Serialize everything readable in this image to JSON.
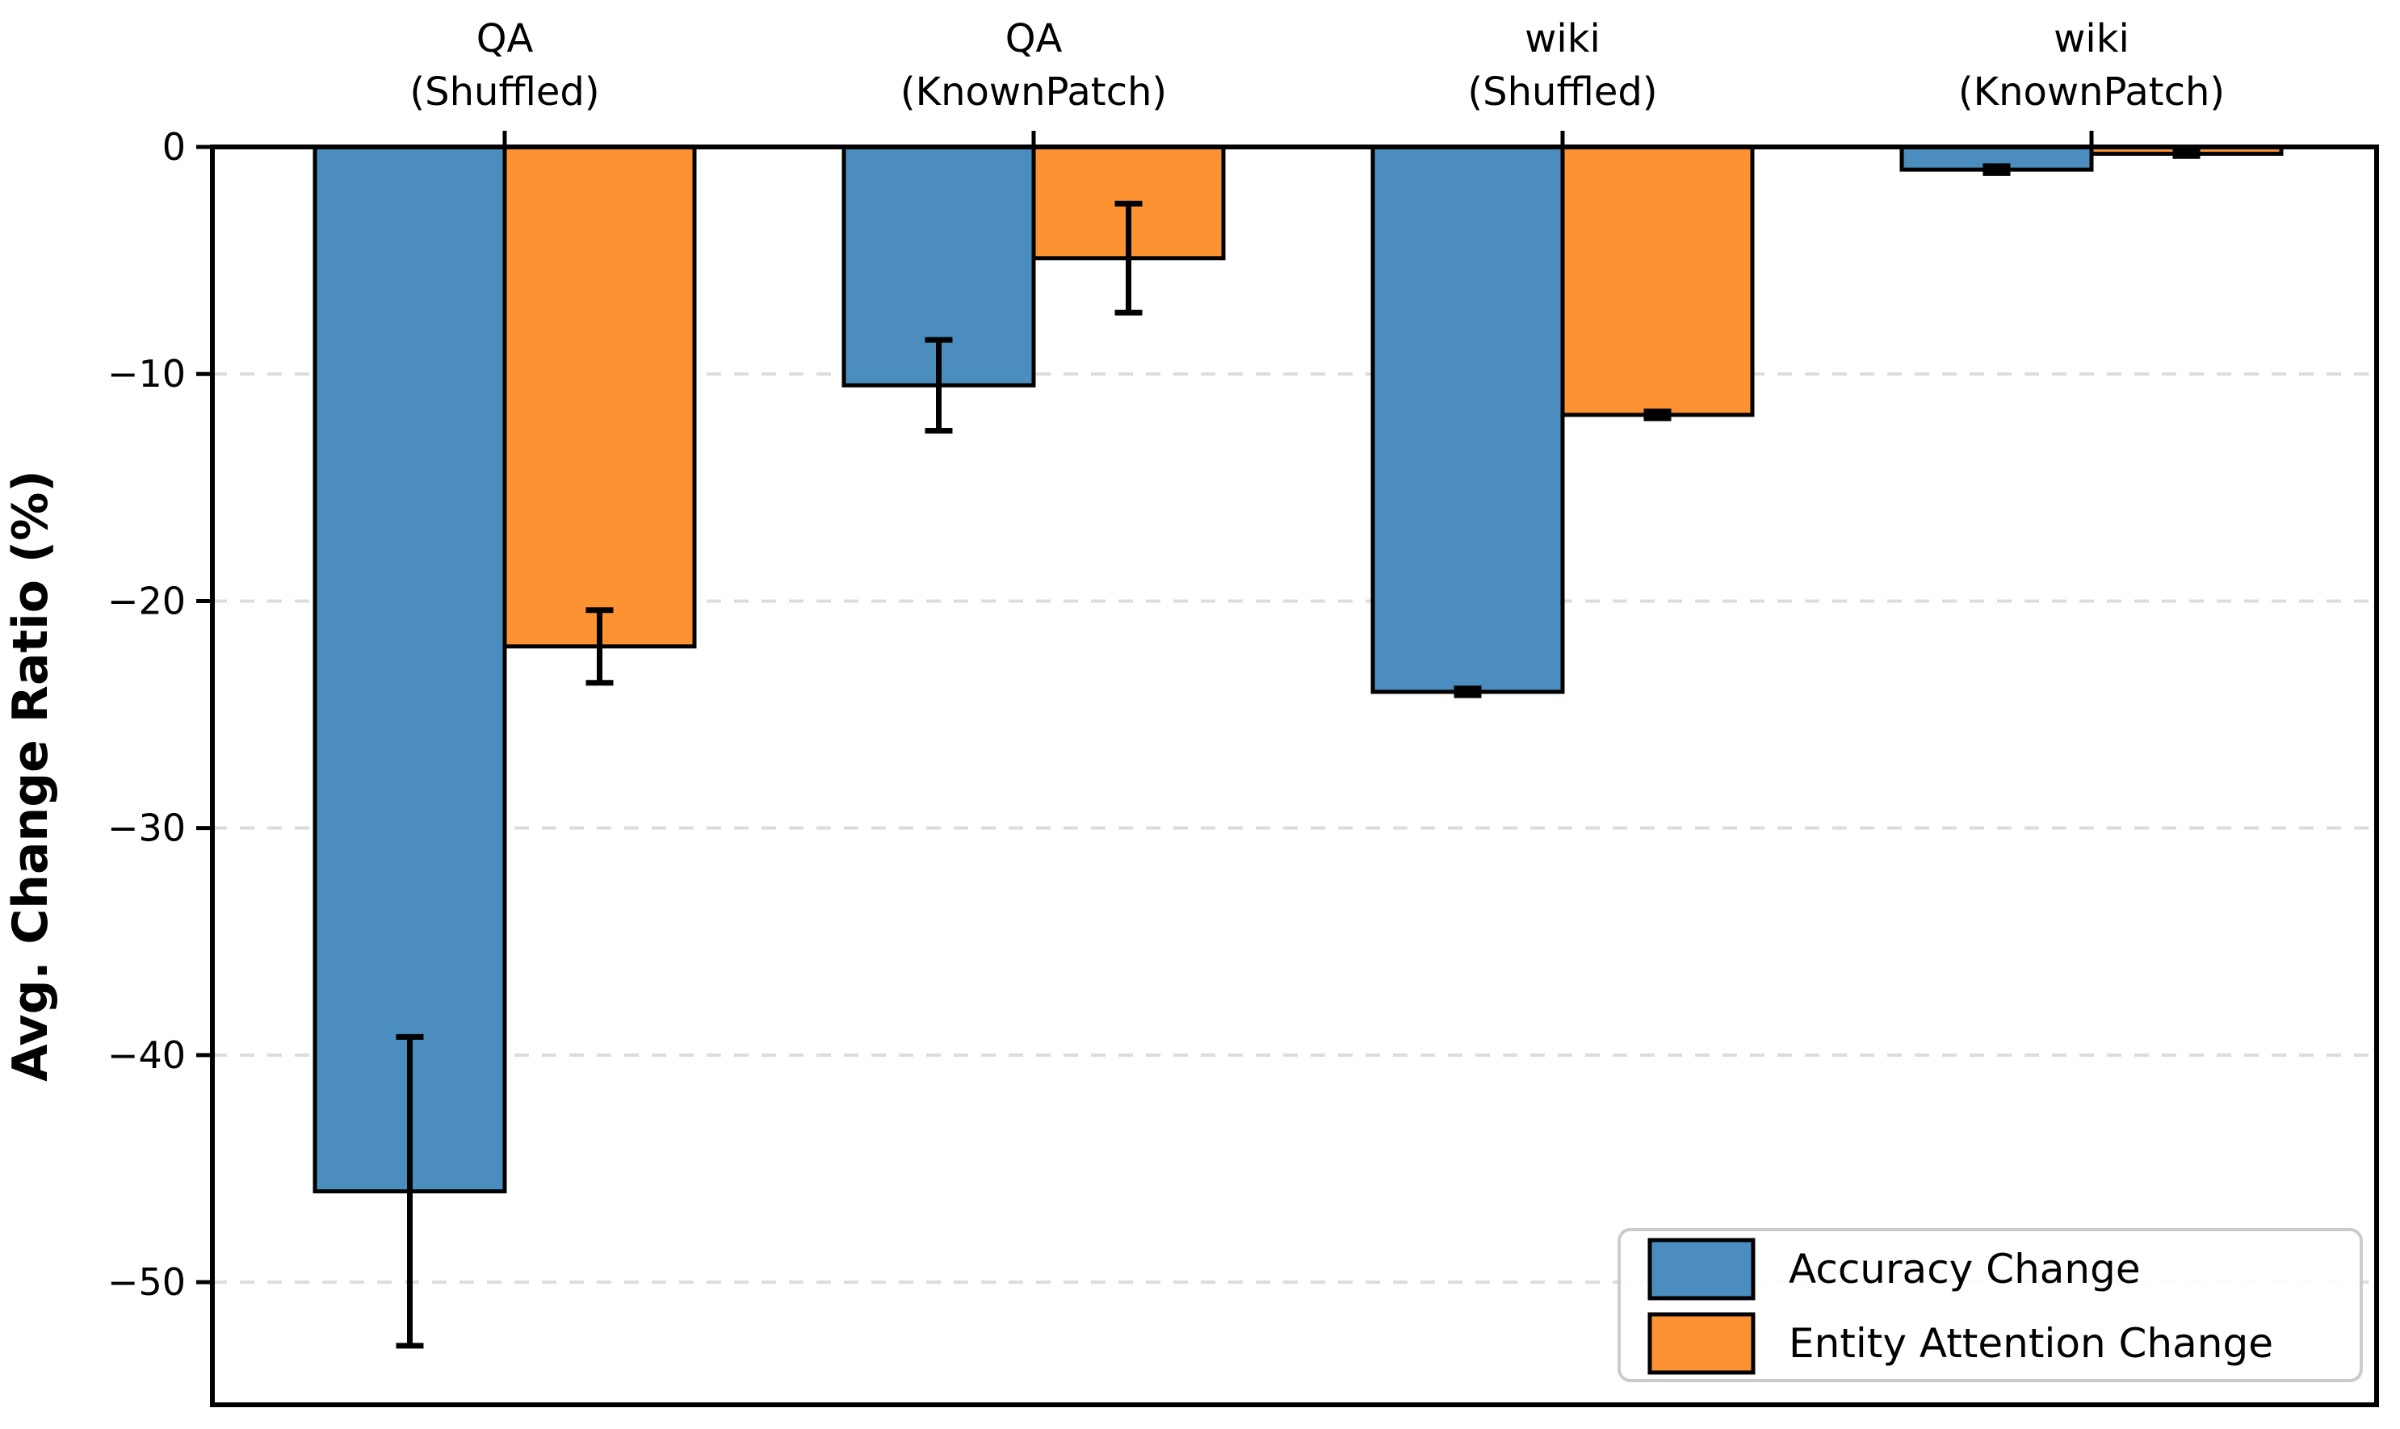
{
  "chart_data": {
    "type": "bar",
    "title": "",
    "orientation": "vertical-negative",
    "categories": [
      {
        "line1": "QA",
        "line2": "(Shuffled)"
      },
      {
        "line1": "QA",
        "line2": "(KnownPatch)"
      },
      {
        "line1": "wiki",
        "line2": "(Shuffled)"
      },
      {
        "line1": "wiki",
        "line2": "(KnownPatch)"
      }
    ],
    "series": [
      {
        "name": "Accuracy Change",
        "color": "#4A8DBE",
        "values": [
          -46.0,
          -10.5,
          -24.0,
          -1.0
        ],
        "errors": [
          6.8,
          2.0,
          0.15,
          0.15
        ]
      },
      {
        "name": "Entity Attention Change",
        "color": "#FD9233",
        "values": [
          -22.0,
          -4.9,
          -11.8,
          -0.3
        ],
        "errors": [
          1.6,
          2.4,
          0.15,
          0.1
        ]
      }
    ],
    "xlabel": "",
    "ylabel": "Avg. Change Ratio (%)",
    "yticks": [
      0,
      -10,
      -20,
      -30,
      -40,
      -50
    ],
    "ytick_labels": [
      "0",
      "−10",
      "−20",
      "−30",
      "−40",
      "−50"
    ],
    "ylim": [
      -55.4,
      0
    ],
    "bar_width_fraction": 0.36,
    "grid": "horizontal-dashed",
    "grid_color": "#DCDCDC",
    "edge_color": "#000000",
    "error_color": "#000000",
    "legend": {
      "position": "lower right",
      "border_color": "#CCCCCC",
      "entries": [
        {
          "label": "Accuracy Change",
          "color": "#4A8DBE"
        },
        {
          "label": "Entity Attention Change",
          "color": "#FD9233"
        }
      ]
    }
  }
}
